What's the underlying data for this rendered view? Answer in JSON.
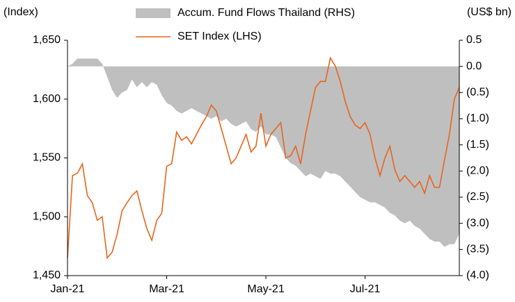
{
  "chart_data": {
    "type": "line",
    "y_axis_label": "(Index)",
    "y2_axis_label": "(US$ bn)",
    "categories": [
      "Jan-21",
      null,
      null,
      null,
      null,
      null,
      null,
      null,
      null,
      null,
      null,
      null,
      null,
      null,
      null,
      null,
      null,
      null,
      null,
      null,
      "Mar-21",
      null,
      null,
      null,
      null,
      null,
      null,
      null,
      null,
      null,
      null,
      null,
      null,
      null,
      null,
      null,
      null,
      null,
      null,
      null,
      "May-21",
      null,
      null,
      null,
      null,
      null,
      null,
      null,
      null,
      null,
      null,
      null,
      null,
      null,
      null,
      null,
      null,
      null,
      null,
      null,
      "Jul-21",
      null,
      null,
      null,
      null,
      null,
      null,
      null,
      null,
      null,
      null,
      null,
      null,
      null,
      null,
      null,
      null,
      null,
      null,
      null
    ],
    "series": [
      {
        "name": "Accum. Fund Flows Thailand (RHS)",
        "kind": "area",
        "axis": "y2",
        "color": "#bfbfbf",
        "values": [
          0.0,
          0.05,
          0.15,
          0.15,
          0.15,
          0.15,
          0.15,
          0.05,
          -0.2,
          -0.45,
          -0.6,
          -0.5,
          -0.45,
          -0.25,
          -0.4,
          -0.3,
          -0.4,
          -0.3,
          -0.35,
          -0.55,
          -0.7,
          -0.75,
          -0.85,
          -0.9,
          -0.85,
          -0.8,
          -0.85,
          -0.9,
          -0.95,
          -1.0,
          -0.95,
          -1.05,
          -1.0,
          -1.1,
          -1.15,
          -1.1,
          -1.05,
          -1.2,
          -1.25,
          -1.15,
          -1.3,
          -1.3,
          -1.35,
          -1.55,
          -1.75,
          -1.85,
          -1.9,
          -2.0,
          -2.1,
          -2.05,
          -2.1,
          -2.15,
          -2.0,
          -2.05,
          -2.05,
          -2.1,
          -2.2,
          -2.3,
          -2.4,
          -2.5,
          -2.55,
          -2.6,
          -2.6,
          -2.65,
          -2.7,
          -2.8,
          -2.85,
          -2.95,
          -3.0,
          -2.95,
          -3.05,
          -3.1,
          -3.2,
          -3.3,
          -3.35,
          -3.35,
          -3.45,
          -3.4,
          -3.4,
          -3.2
        ]
      },
      {
        "name": "SET Index (LHS)",
        "kind": "line",
        "axis": "y",
        "color": "#e8641b",
        "values": [
          1465,
          1535,
          1537,
          1545,
          1518,
          1512,
          1497,
          1500,
          1465,
          1470,
          1485,
          1505,
          1512,
          1518,
          1522,
          1505,
          1490,
          1480,
          1497,
          1503,
          1543,
          1545,
          1572,
          1565,
          1568,
          1562,
          1570,
          1578,
          1585,
          1595,
          1590,
          1575,
          1560,
          1545,
          1550,
          1560,
          1570,
          1555,
          1560,
          1588,
          1560,
          1570,
          1575,
          1580,
          1550,
          1552,
          1560,
          1545,
          1570,
          1590,
          1610,
          1615,
          1615,
          1635,
          1628,
          1615,
          1598,
          1585,
          1578,
          1575,
          1580,
          1570,
          1550,
          1535,
          1550,
          1560,
          1540,
          1530,
          1535,
          1530,
          1525,
          1530,
          1520,
          1535,
          1525,
          1525,
          1548,
          1570,
          1600,
          1610
        ]
      }
    ],
    "ylim": [
      1450,
      1650
    ],
    "yticks": [
      {
        "value": 1450,
        "label": "1,450"
      },
      {
        "value": 1500,
        "label": "1,500"
      },
      {
        "value": 1550,
        "label": "1,550"
      },
      {
        "value": 1600,
        "label": "1,600"
      },
      {
        "value": 1650,
        "label": "1,650"
      }
    ],
    "y2lim": [
      -4.0,
      0.5
    ],
    "y2ticks": [
      0.5,
      {
        "value": 0,
        "label": "0.0"
      },
      {
        "value": -0.5,
        "label": "(0.5)"
      },
      {
        "value": -1.0,
        "label": "(1.0)"
      },
      {
        "value": -1.5,
        "label": "(1.5)"
      },
      {
        "value": -2.0,
        "label": "(2.0)"
      },
      {
        "value": -2.5,
        "label": "(2.5)"
      },
      {
        "value": -3.0,
        "label": "(3.0)"
      },
      {
        "value": -3.5,
        "label": "(3.5)"
      },
      {
        "value": -4.0,
        "label": "(4.0)"
      }
    ]
  }
}
